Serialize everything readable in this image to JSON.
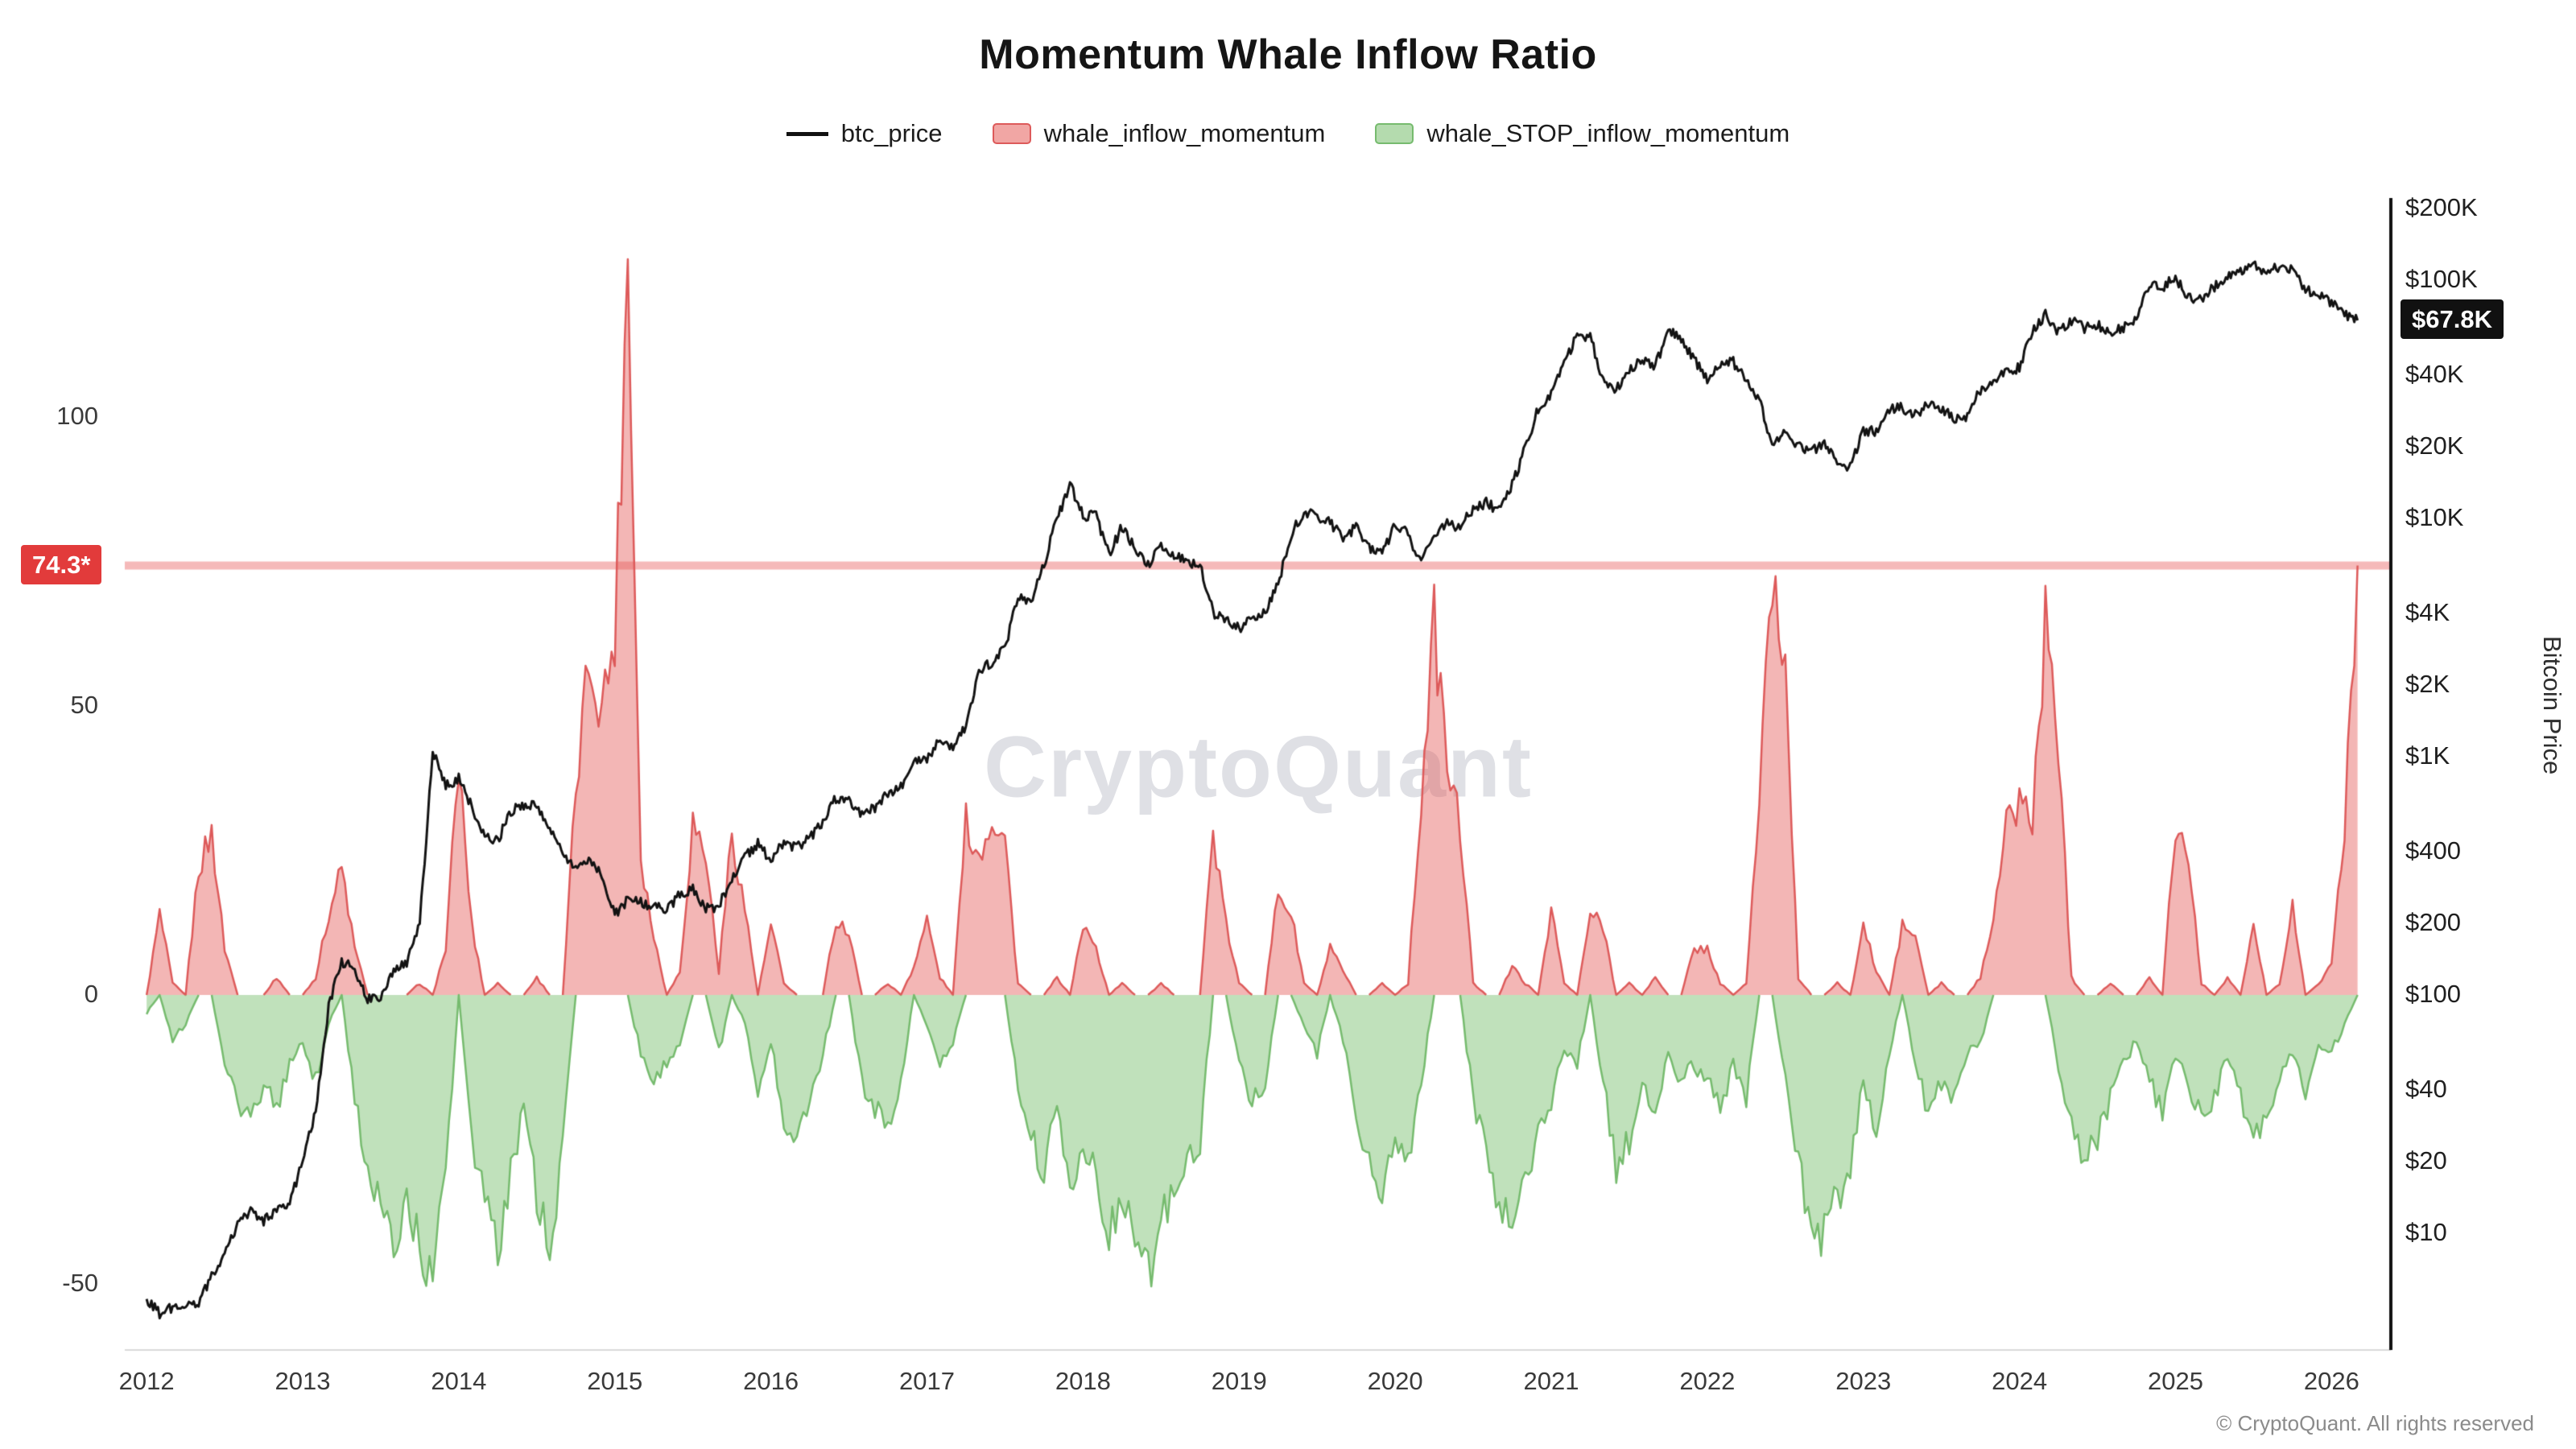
{
  "chart_data": {
    "type": "line",
    "title": "Momentum Whale Inflow Ratio",
    "watermark": "CryptoQuant",
    "x_domain": [
      2011.86,
      2026.38
    ],
    "x_start": 2012.0,
    "x_step": "monthly",
    "x_axis": {
      "ticks": [
        2012,
        2013,
        2014,
        2015,
        2016,
        2017,
        2018,
        2019,
        2020,
        2021,
        2022,
        2023,
        2024,
        2025,
        2026
      ]
    },
    "left_axis": {
      "ticks": [
        100,
        50,
        0,
        -50
      ],
      "range": [
        -61,
        137
      ]
    },
    "right_axis": {
      "label": "Bitcoin Price",
      "scale": "log",
      "ticks": [
        {
          "label": "$200K",
          "value": 200000
        },
        {
          "label": "$100K",
          "value": 100000
        },
        {
          "label": "$40K",
          "value": 40000
        },
        {
          "label": "$20K",
          "value": 20000
        },
        {
          "label": "$10K",
          "value": 10000
        },
        {
          "label": "$4K",
          "value": 4000
        },
        {
          "label": "$2K",
          "value": 2000
        },
        {
          "label": "$1K",
          "value": 1000
        },
        {
          "label": "$400",
          "value": 400
        },
        {
          "label": "$200",
          "value": 200
        },
        {
          "label": "$100",
          "value": 100
        },
        {
          "label": "$40",
          "value": 40
        },
        {
          "label": "$20",
          "value": 20
        },
        {
          "label": "$10",
          "value": 10
        }
      ]
    },
    "annotations": {
      "momentum_line": {
        "value": 74.3,
        "label": "74.3*",
        "badge_color": "#e23b3b",
        "line_color": "#f5b9b9"
      },
      "last_price": {
        "value": 67800,
        "label": "$67.8K",
        "badge_color": "#111111"
      }
    },
    "series": [
      {
        "name": "btc_price",
        "type": "line",
        "axis": "right",
        "color": "#121212",
        "values": [
          5.3,
          4.6,
          4.9,
          5.0,
          5.1,
          6.6,
          8.1,
          10.9,
          12.3,
          11.2,
          12.5,
          13.5,
          20,
          33,
          90,
          139,
          128,
          97,
          99,
          128,
          135,
          198,
          1050,
          750,
          815,
          620,
          455,
          445,
          585,
          630,
          615,
          500,
          390,
          340,
          375,
          318,
          218,
          252,
          245,
          235,
          232,
          262,
          283,
          230,
          236,
          312,
          378,
          430,
          368,
          437,
          416,
          452,
          531,
          672,
          655,
          577,
          610,
          700,
          744,
          963,
          965,
          1190,
          1072,
          1348,
          2300,
          2480,
          2852,
          4703,
          4350,
          6450,
          9900,
          13900,
          10200,
          10300,
          7000,
          9250,
          7500,
          6400,
          7750,
          7030,
          6620,
          6300,
          4020,
          3740,
          3450,
          3850,
          4100,
          5300,
          8550,
          10800,
          10100,
          9600,
          8300,
          9150,
          7550,
          7200,
          9350,
          8600,
          6450,
          8650,
          9450,
          9140,
          11000,
          11650,
          10780,
          13800,
          19700,
          29000,
          33100,
          45200,
          58800,
          57750,
          37300,
          35000,
          41500,
          47100,
          43800,
          61300,
          57000,
          46200,
          38500,
          43200,
          45500,
          37700,
          31800,
          19900,
          23300,
          20050,
          19400,
          20500,
          17100,
          16550,
          23130,
          23150,
          28500,
          29250,
          27200,
          30480,
          29230,
          25940,
          26960,
          34500,
          37700,
          42270,
          42580,
          61200,
          71330,
          60640,
          67500,
          62680,
          64630,
          58970,
          63330,
          70220,
          96400,
          93430,
          102100,
          84350,
          82550,
          94200,
          104600,
          107100,
          115800,
          108200,
          114100,
          110100,
          91000,
          87000,
          80000,
          71500,
          67800
        ]
      },
      {
        "name": "whale_inflow_momentum",
        "type": "area",
        "axis": "left",
        "color": "#dd5a5a",
        "fill": "rgba(229,93,90,0.45)",
        "values": [
          0,
          14,
          2,
          0,
          22,
          28,
          8,
          0,
          0,
          0,
          3,
          0,
          0,
          3,
          14,
          22,
          8,
          0,
          0,
          0,
          0,
          2,
          0,
          8,
          40,
          12,
          0,
          2,
          0,
          0,
          3,
          0,
          0,
          35,
          58,
          50,
          62,
          128,
          24,
          10,
          0,
          4,
          30,
          24,
          4,
          28,
          15,
          0,
          12,
          2,
          0,
          0,
          0,
          13,
          11,
          0,
          0,
          2,
          0,
          5,
          13,
          3,
          0,
          30,
          24,
          31,
          27,
          2,
          0,
          0,
          3,
          0,
          12,
          8,
          0,
          2,
          0,
          0,
          2,
          0,
          0,
          0,
          28,
          12,
          2,
          0,
          0,
          18,
          14,
          2,
          0,
          8,
          4,
          0,
          0,
          2,
          0,
          2,
          34,
          64,
          40,
          29,
          2,
          0,
          0,
          5,
          2,
          0,
          15,
          2,
          0,
          14,
          12,
          0,
          2,
          0,
          3,
          0,
          0,
          8,
          8,
          2,
          0,
          2,
          34,
          72,
          57,
          3,
          0,
          0,
          2,
          0,
          12,
          4,
          0,
          12,
          10,
          0,
          2,
          0,
          0,
          3,
          14,
          29,
          34,
          30,
          64,
          44,
          3,
          0,
          0,
          2,
          0,
          0,
          3,
          0,
          30,
          24,
          2,
          0,
          3,
          0,
          12,
          0,
          2,
          15,
          0,
          2,
          5,
          30,
          74.3
        ]
      },
      {
        "name": "whale_STOP_inflow_momentum",
        "type": "area",
        "axis": "left",
        "color": "#76bb6e",
        "fill": "rgba(130,195,120,0.5)",
        "values": [
          -3,
          0,
          -8,
          -5,
          0,
          0,
          -12,
          -18,
          -22,
          -15,
          -20,
          -12,
          -8,
          -15,
          -5,
          0,
          -18,
          -30,
          -38,
          -44,
          -35,
          -45,
          -48,
          -30,
          0,
          -25,
          -35,
          -45,
          -30,
          -20,
          -35,
          -45,
          -25,
          0,
          0,
          0,
          0,
          0,
          -10,
          -15,
          -12,
          -8,
          0,
          0,
          -10,
          0,
          -5,
          -18,
          -8,
          -22,
          -25,
          -18,
          -10,
          0,
          0,
          -15,
          -20,
          -22,
          -15,
          0,
          -5,
          -12,
          -8,
          0,
          0,
          0,
          0,
          -15,
          -25,
          -30,
          -20,
          -35,
          -25,
          -30,
          -42,
          -35,
          -45,
          -48,
          -40,
          -35,
          -30,
          -25,
          0,
          0,
          -12,
          -18,
          -15,
          0,
          0,
          -5,
          -10,
          0,
          -8,
          -20,
          -30,
          -35,
          -25,
          -30,
          -15,
          0,
          0,
          0,
          -18,
          -28,
          -35,
          -40,
          -30,
          -25,
          -18,
          -10,
          -12,
          0,
          -15,
          -30,
          -25,
          -15,
          -20,
          -10,
          -15,
          -12,
          -15,
          -20,
          -12,
          -18,
          0,
          0,
          -15,
          -30,
          -38,
          -42,
          -35,
          -30,
          -15,
          -25,
          -10,
          0,
          -12,
          -20,
          -15,
          -18,
          -10,
          -8,
          0,
          0,
          0,
          0,
          0,
          -12,
          -22,
          -28,
          -25,
          -18,
          -12,
          -8,
          -15,
          -20,
          -10,
          -15,
          -22,
          -18,
          -10,
          -18,
          -25,
          -20,
          -15,
          -10,
          -18,
          -8,
          -10,
          -5,
          0
        ]
      }
    ]
  },
  "footer": {
    "copyright": "© CryptoQuant. All rights reserved"
  }
}
